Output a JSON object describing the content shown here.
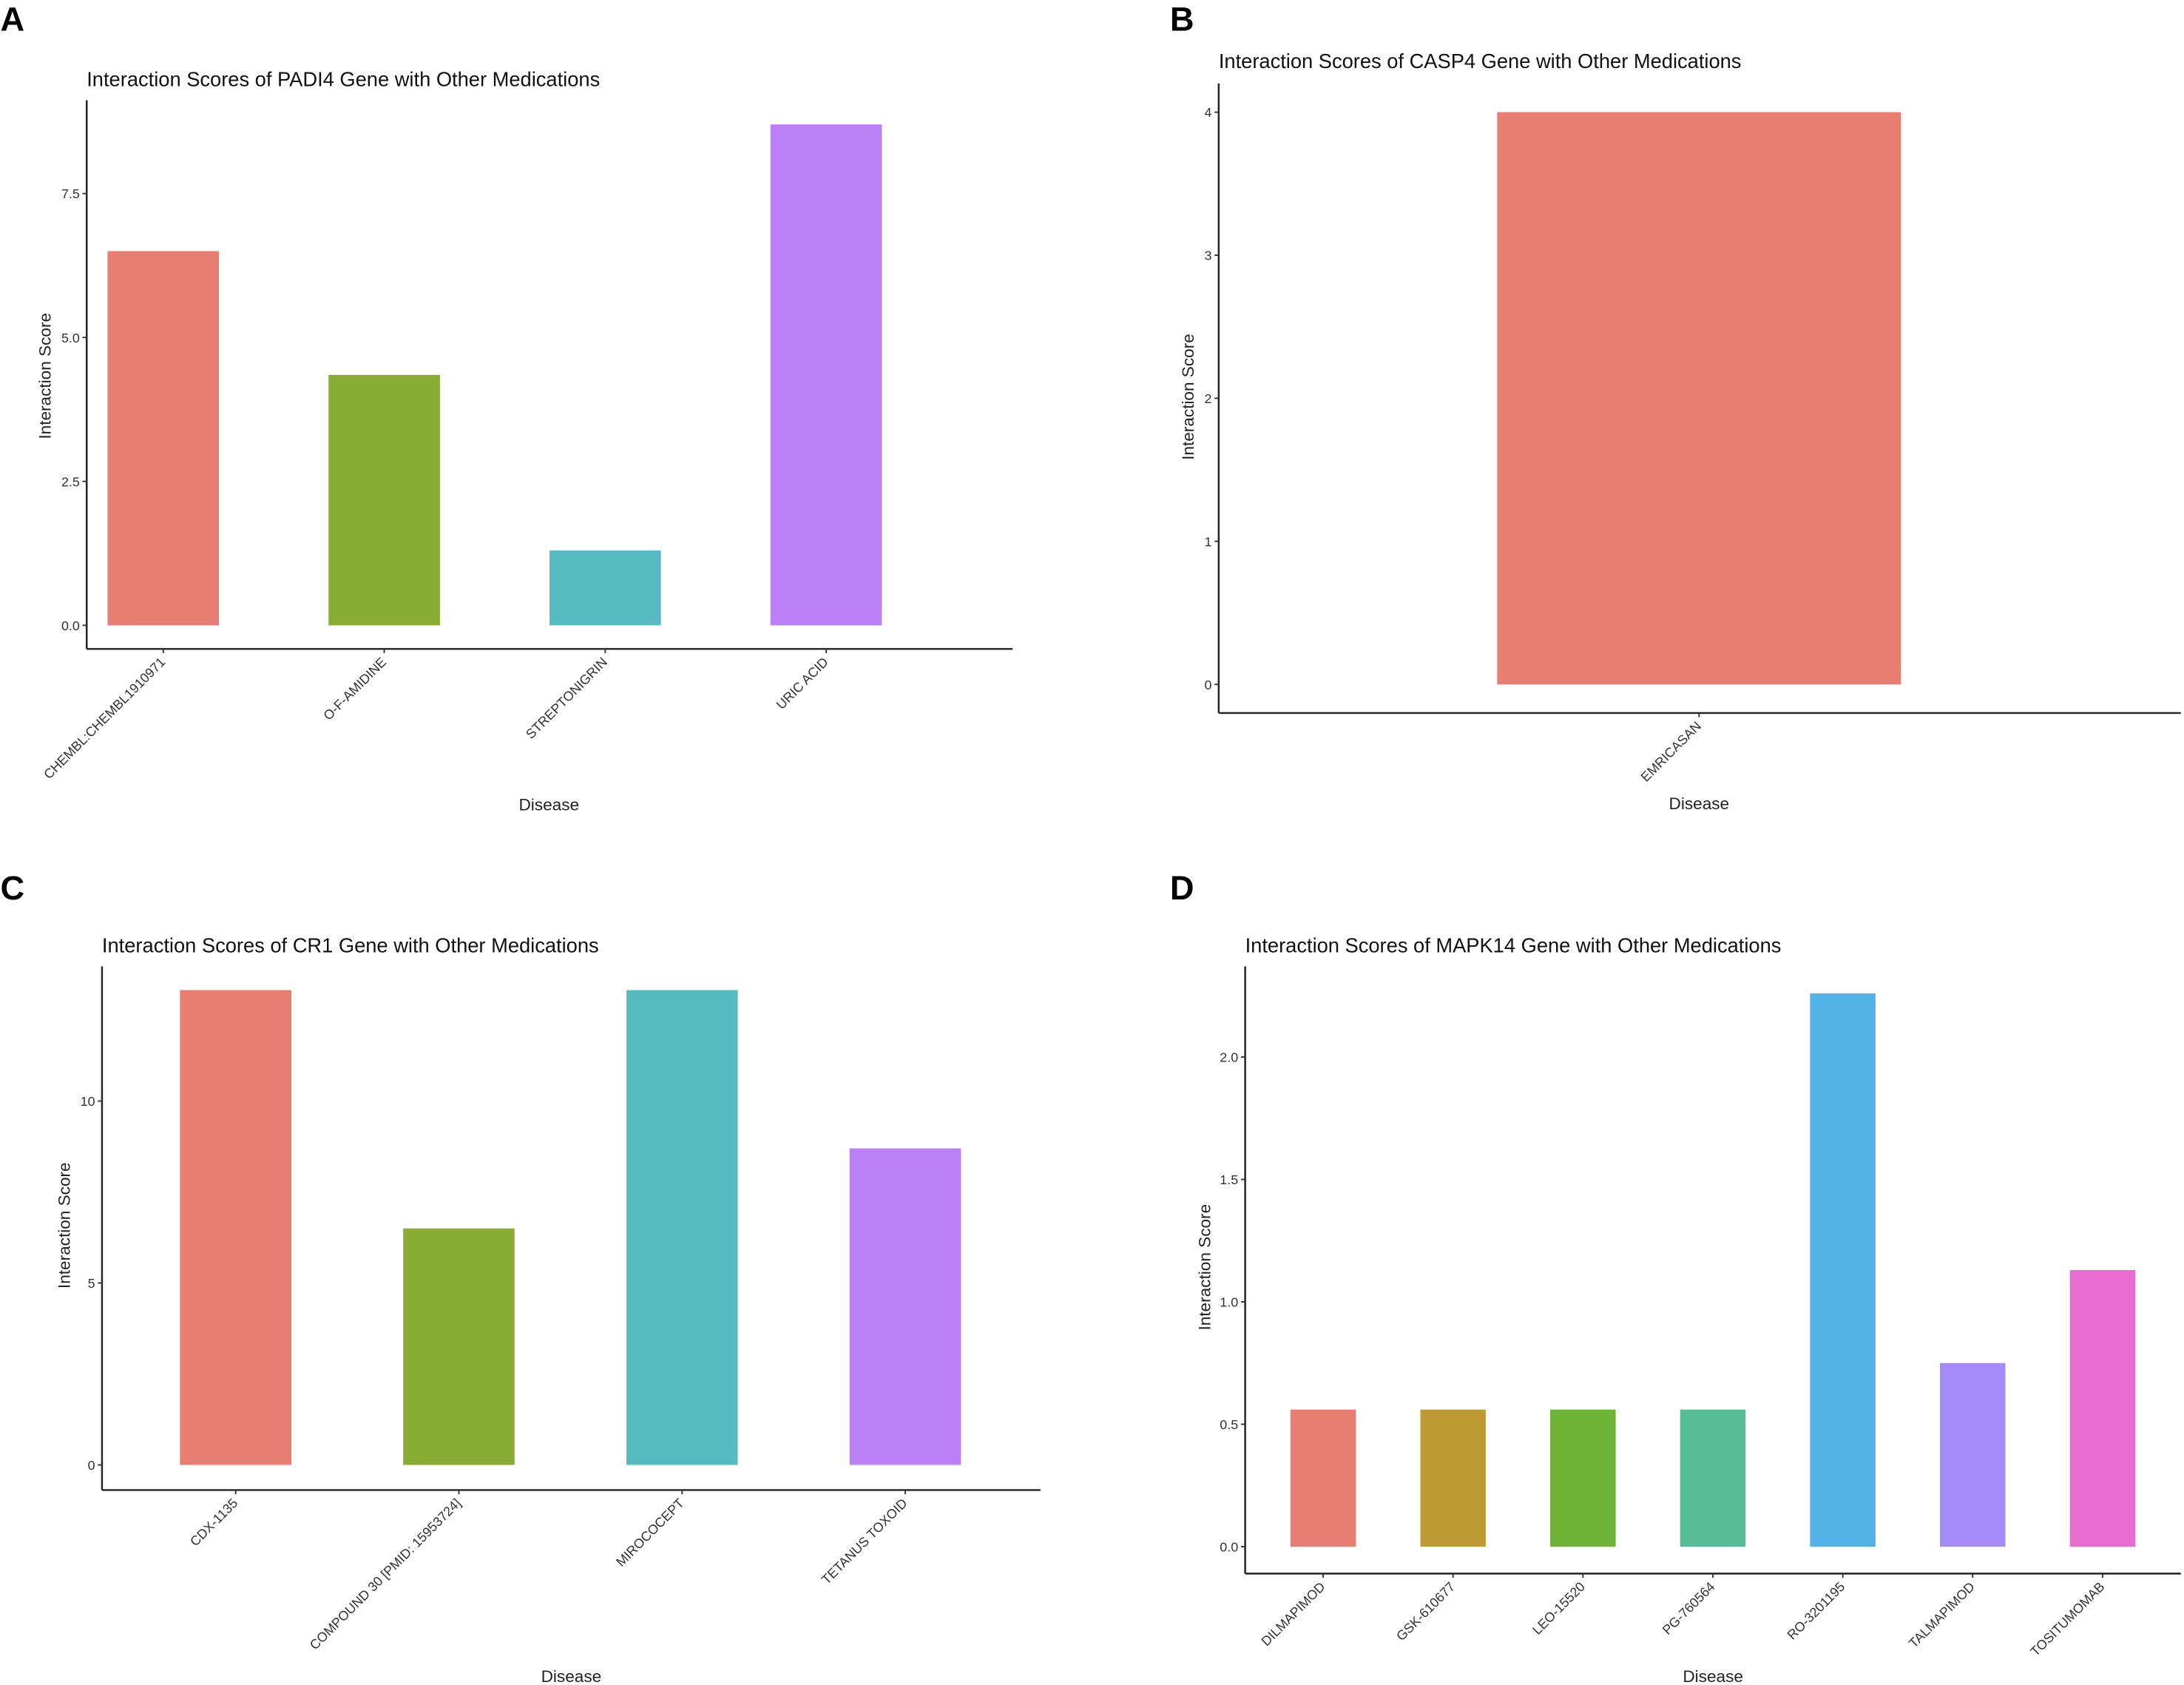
{
  "chart_data": [
    {
      "panel": "A",
      "type": "bar",
      "title": "Interaction Scores of PADI4 Gene with Other Medications",
      "xlabel": "Disease",
      "ylabel": "Interaction Score",
      "categories": [
        "CHEMBL:CHEMBL1910971",
        "O-F-AMIDINE",
        "STREPTONIGRIN",
        "URIC ACID"
      ],
      "values": [
        6.5,
        4.35,
        1.3,
        8.7
      ],
      "colors": [
        "#E87D72",
        "#88AC34",
        "#56BCC2",
        "#BC80F6"
      ],
      "yticks": [
        0,
        2.5,
        5,
        7.5
      ],
      "ytick_labels": [
        "0.0",
        "2.5",
        "5.0",
        "7.5"
      ],
      "ylim": [
        -0.41,
        9.12
      ],
      "grid": false
    },
    {
      "panel": "B",
      "type": "bar",
      "title": "Interaction Scores of CASP4 Gene with Other Medications",
      "xlabel": "Disease",
      "ylabel": "Interaction Score",
      "categories": [
        "EMRICASAN"
      ],
      "values": [
        4.0
      ],
      "colors": [
        "#E87D72"
      ],
      "yticks": [
        0,
        1,
        2,
        3,
        4
      ],
      "ytick_labels": [
        "0",
        "1",
        "2",
        "3",
        "4"
      ],
      "ylim": [
        -0.2,
        4.2
      ],
      "grid": false
    },
    {
      "panel": "C",
      "type": "bar",
      "title": "Interaction Scores of CR1 Gene with Other Medications",
      "xlabel": "Disease",
      "ylabel": "Interaction Score",
      "categories": [
        "CDX-1135",
        "COMPOUND 30 [PMID: 15953724]",
        "MIROCOCEPT",
        "TETANUS TOXOID"
      ],
      "values": [
        13.05,
        6.5,
        13.05,
        8.7
      ],
      "colors": [
        "#E87D72",
        "#88AC34",
        "#56BCC2",
        "#BC80F6"
      ],
      "yticks": [
        0,
        5,
        10
      ],
      "ytick_labels": [
        "0",
        "5",
        "10"
      ],
      "ylim": [
        -0.69,
        13.7
      ],
      "grid": false
    },
    {
      "panel": "D",
      "type": "bar",
      "title": "Interaction Scores of MAPK14 Gene with Other Medications",
      "xlabel": "Disease",
      "ylabel": "Interaction Score",
      "categories": [
        "DILMAPIMOD",
        "GSK-610677",
        "LEO-15520",
        "PG-760564",
        "RO-3201195",
        "TALMAPIMOD",
        "TOSITUMOMAB"
      ],
      "values": [
        0.56,
        0.56,
        0.56,
        0.56,
        2.26,
        0.75,
        1.13
      ],
      "colors": [
        "#E87D72",
        "#BE9A34",
        "#6CB336",
        "#56BD96",
        "#53B2E5",
        "#A48BF7",
        "#E96DD0"
      ],
      "yticks": [
        0,
        0.5,
        1,
        1.5,
        2
      ],
      "ytick_labels": [
        "0.0",
        "0.5",
        "1.0",
        "1.5",
        "2.0"
      ],
      "ylim": [
        -0.11,
        2.37
      ],
      "grid": false
    }
  ]
}
